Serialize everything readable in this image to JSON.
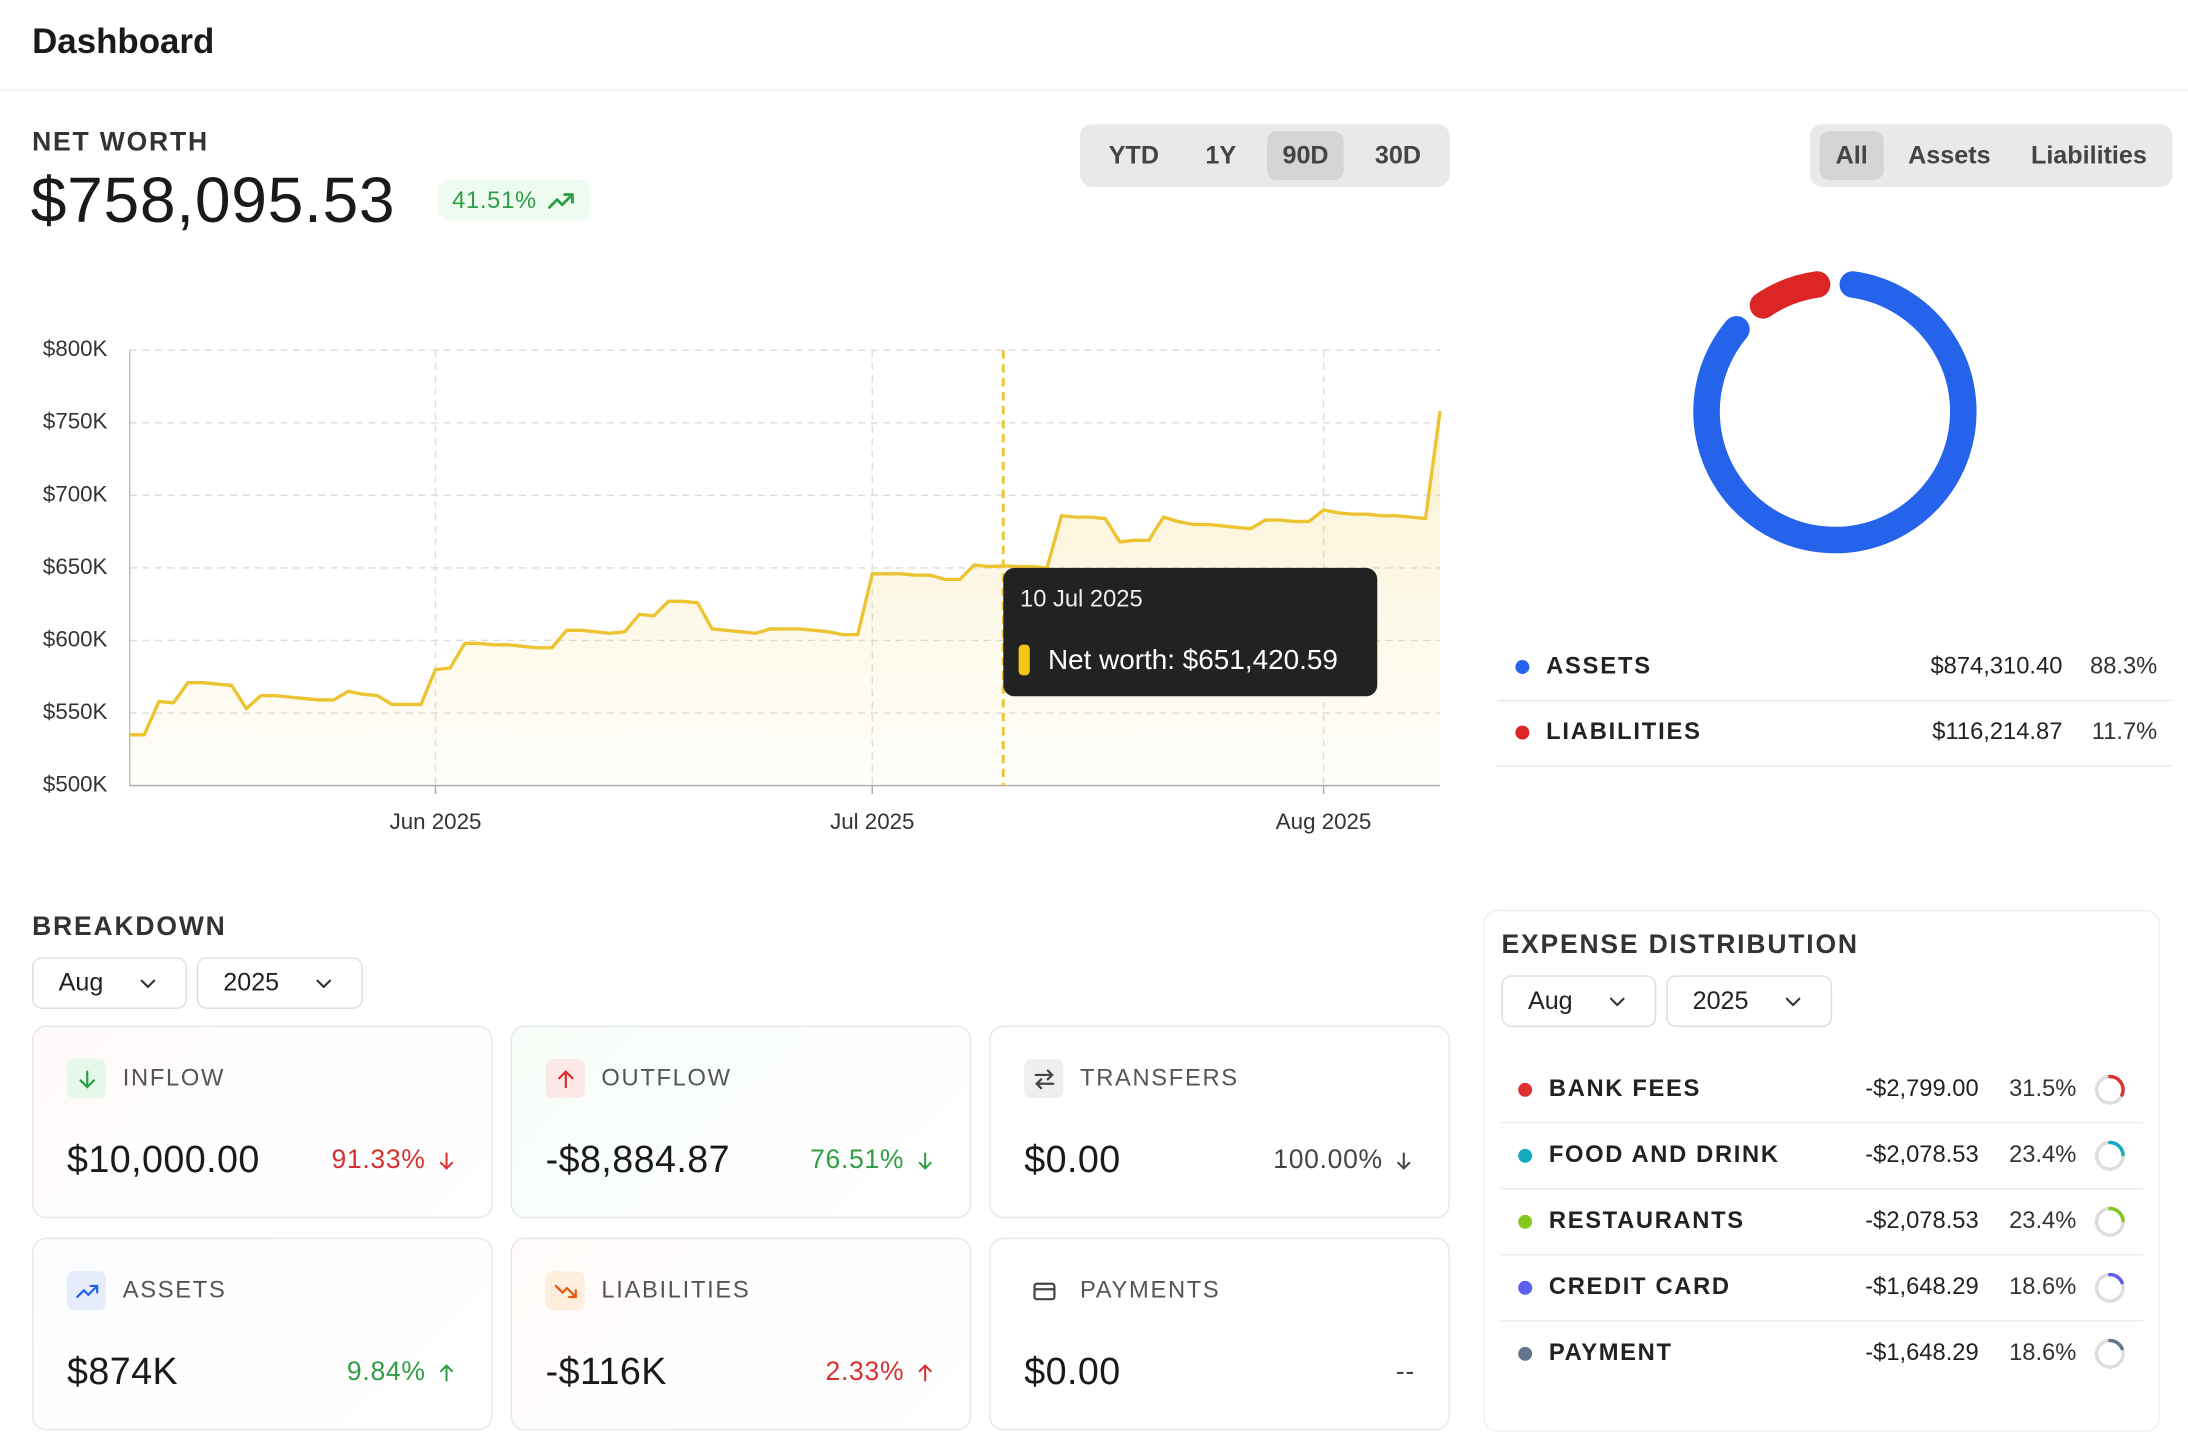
{
  "header": {
    "title": "Dashboard"
  },
  "net_worth": {
    "title": "NET WORTH",
    "value": "$758,095.53",
    "change": "41.51%"
  },
  "range_tabs": {
    "options": [
      "YTD",
      "1Y",
      "90D",
      "30D"
    ],
    "active": "90D"
  },
  "donut_tabs": {
    "options": [
      "All",
      "Assets",
      "Liabilities"
    ],
    "active": "All"
  },
  "chart_data": [
    {
      "type": "line",
      "color": "#ecc331",
      "x": [
        "2025-05-11",
        "2025-05-12",
        "2025-05-13",
        "2025-05-14",
        "2025-05-15",
        "2025-05-16",
        "2025-05-17",
        "2025-05-18",
        "2025-05-19",
        "2025-05-20",
        "2025-05-21",
        "2025-05-22",
        "2025-05-23",
        "2025-05-24",
        "2025-05-25",
        "2025-05-26",
        "2025-05-27",
        "2025-05-28",
        "2025-05-29",
        "2025-05-30",
        "2025-05-31",
        "2025-06-01",
        "2025-06-02",
        "2025-06-03",
        "2025-06-04",
        "2025-06-05",
        "2025-06-06",
        "2025-06-07",
        "2025-06-08",
        "2025-06-09",
        "2025-06-10",
        "2025-06-11",
        "2025-06-12",
        "2025-06-13",
        "2025-06-14",
        "2025-06-15",
        "2025-06-16",
        "2025-06-17",
        "2025-06-18",
        "2025-06-19",
        "2025-06-20",
        "2025-06-21",
        "2025-06-22",
        "2025-06-23",
        "2025-06-24",
        "2025-06-25",
        "2025-06-26",
        "2025-06-27",
        "2025-06-28",
        "2025-06-29",
        "2025-06-30",
        "2025-07-01",
        "2025-07-02",
        "2025-07-03",
        "2025-07-04",
        "2025-07-05",
        "2025-07-06",
        "2025-07-07",
        "2025-07-08",
        "2025-07-09",
        "2025-07-10",
        "2025-07-11",
        "2025-07-12",
        "2025-07-13",
        "2025-07-14",
        "2025-07-15",
        "2025-07-16",
        "2025-07-17",
        "2025-07-18",
        "2025-07-19",
        "2025-07-20",
        "2025-07-21",
        "2025-07-22",
        "2025-07-23",
        "2025-07-24",
        "2025-07-25",
        "2025-07-26",
        "2025-07-27",
        "2025-07-28",
        "2025-07-29",
        "2025-07-30",
        "2025-07-31",
        "2025-08-01",
        "2025-08-02",
        "2025-08-03",
        "2025-08-04",
        "2025-08-05",
        "2025-08-06",
        "2025-08-07",
        "2025-08-08",
        "2025-08-09"
      ],
      "values": [
        535000,
        535000,
        558000,
        557000,
        571000,
        571000,
        570000,
        569000,
        553000,
        562000,
        562000,
        561000,
        560000,
        559000,
        559000,
        565000,
        563000,
        562000,
        556000,
        556000,
        556000,
        580000,
        581000,
        598000,
        598000,
        597000,
        597000,
        596000,
        595000,
        595000,
        607000,
        607000,
        606000,
        605000,
        606000,
        618000,
        617000,
        627000,
        627000,
        626000,
        608000,
        607000,
        606000,
        605000,
        608000,
        608000,
        608000,
        607000,
        606000,
        604000,
        604000,
        646000,
        646000,
        646000,
        645000,
        645000,
        642000,
        642000,
        652000,
        651000,
        651420.59,
        651000,
        651000,
        650000,
        686000,
        685000,
        685000,
        684000,
        668000,
        669000,
        669000,
        685000,
        682000,
        680000,
        680000,
        679000,
        678000,
        677000,
        683000,
        683000,
        682000,
        682000,
        690000,
        688000,
        687000,
        687000,
        686000,
        686000,
        685000,
        684000,
        758095.53
      ],
      "xlim": [
        "2025-05-11",
        "2025-08-09"
      ],
      "xticks": [
        {
          "value": "2025-06-01",
          "label": "Jun 2025"
        },
        {
          "value": "2025-07-01",
          "label": "Jul 2025"
        },
        {
          "value": "2025-08-01",
          "label": "Aug 2025"
        }
      ],
      "ylim": [
        500000,
        800000
      ],
      "yticks": [
        {
          "value": 500000,
          "label": "$500K"
        },
        {
          "value": 550000,
          "label": "$550K"
        },
        {
          "value": 600000,
          "label": "$600K"
        },
        {
          "value": 650000,
          "label": "$650K"
        },
        {
          "value": 700000,
          "label": "$700K"
        },
        {
          "value": 750000,
          "label": "$750K"
        },
        {
          "value": 800000,
          "label": "$800K"
        }
      ],
      "grid": true,
      "tooltip": {
        "date": "10 Jul 2025",
        "text": "Net worth: $651,420.59"
      }
    },
    {
      "type": "pie",
      "donut": true,
      "categories": [
        "ASSETS",
        "LIABILITIES"
      ],
      "values": [
        88.3,
        11.7
      ],
      "value_labels": [
        "88.3%",
        "11.7%"
      ],
      "amounts": [
        "$874,310.40",
        "$116,214.87"
      ],
      "colors": [
        "#2563eb",
        "#dc2626"
      ]
    }
  ],
  "breakdown": {
    "title": "BREAKDOWN",
    "month": "Aug",
    "year": "2025",
    "cards": [
      {
        "label": "INFLOW",
        "value": "$10,000.00",
        "change": "91.33%",
        "direction": "down",
        "tone": "negative"
      },
      {
        "label": "OUTFLOW",
        "value": "-$8,884.87",
        "change": "76.51%",
        "direction": "down",
        "tone": "positive"
      },
      {
        "label": "TRANSFERS",
        "value": "$0.00",
        "change": "100.00%",
        "direction": "down",
        "tone": "neutral"
      },
      {
        "label": "ASSETS",
        "value": "$874K",
        "change": "9.84%",
        "direction": "up",
        "tone": "positive"
      },
      {
        "label": "LIABILITIES",
        "value": "-$116K",
        "change": "2.33%",
        "direction": "up",
        "tone": "negative"
      },
      {
        "label": "PAYMENTS",
        "value": "$0.00",
        "change": "--",
        "tone": "neutral"
      }
    ]
  },
  "expense_distribution": {
    "title": "EXPENSE DISTRIBUTION",
    "month": "Aug",
    "year": "2025",
    "rows": [
      {
        "name": "BANK FEES",
        "color": "#e03131",
        "amount": "-$2,799.00",
        "percent": "31.5%"
      },
      {
        "name": "FOOD AND DRINK",
        "color": "#15aabf",
        "amount": "-$2,078.53",
        "percent": "23.4%"
      },
      {
        "name": "RESTAURANTS",
        "color": "#82c91e",
        "amount": "-$2,078.53",
        "percent": "23.4%"
      },
      {
        "name": "CREDIT CARD",
        "color": "#5c5fef",
        "amount": "-$1,648.29",
        "percent": "18.6%"
      },
      {
        "name": "PAYMENT",
        "color": "#64748b",
        "amount": "-$1,648.29",
        "percent": "18.6%"
      }
    ]
  }
}
